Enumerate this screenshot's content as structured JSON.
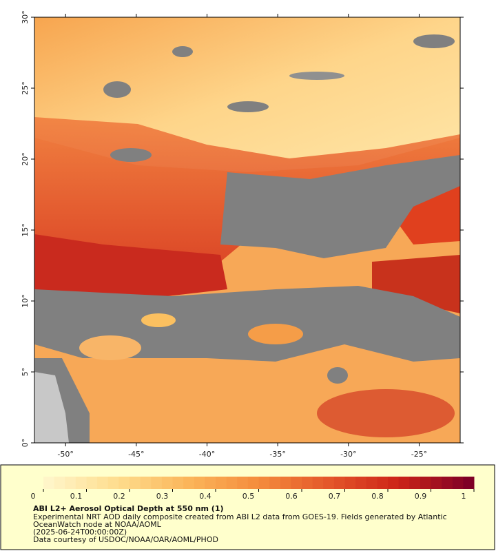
{
  "map": {
    "xlim": [
      -52.2,
      -22.1
    ],
    "ylim": [
      0,
      30
    ],
    "xticks": [
      {
        "value": -50,
        "label": "-50°"
      },
      {
        "value": -45,
        "label": "-45°"
      },
      {
        "value": -40,
        "label": "-40°"
      },
      {
        "value": -35,
        "label": "-35°"
      },
      {
        "value": -30,
        "label": "-30°"
      },
      {
        "value": -25,
        "label": "-25°"
      }
    ],
    "yticks": [
      {
        "value": 0,
        "label": "0°"
      },
      {
        "value": 5,
        "label": "5°"
      },
      {
        "value": 10,
        "label": "10°"
      },
      {
        "value": 15,
        "label": "15°"
      },
      {
        "value": 20,
        "label": "20°"
      },
      {
        "value": 25,
        "label": "25°"
      },
      {
        "value": 30,
        "label": "30°"
      }
    ]
  },
  "colorbar": {
    "lim": [
      0,
      1
    ],
    "ticks": [
      0,
      0.1,
      0.2,
      0.3,
      0.4,
      0.5,
      0.6,
      0.7,
      0.8,
      0.9,
      1
    ],
    "colors": [
      "#fff5c8",
      "#fedc8c",
      "#fbb55a",
      "#f48c3c",
      "#e4572a",
      "#cc2418",
      "#7f0026"
    ]
  },
  "caption": {
    "title": "ABI L2+ Aerosol Optical Depth at 550 nm (1)",
    "lines": [
      "Experimental NRT AOD daily composite created from ABI L2 data from GOES-19. Fields generated by Atlantic",
      "OceanWatch node at NOAA/AOML",
      "(2025-06-24T00:00:00Z)",
      "Data courtesy of USDOC/NOAA/OAR/AOML/PHOD"
    ]
  }
}
